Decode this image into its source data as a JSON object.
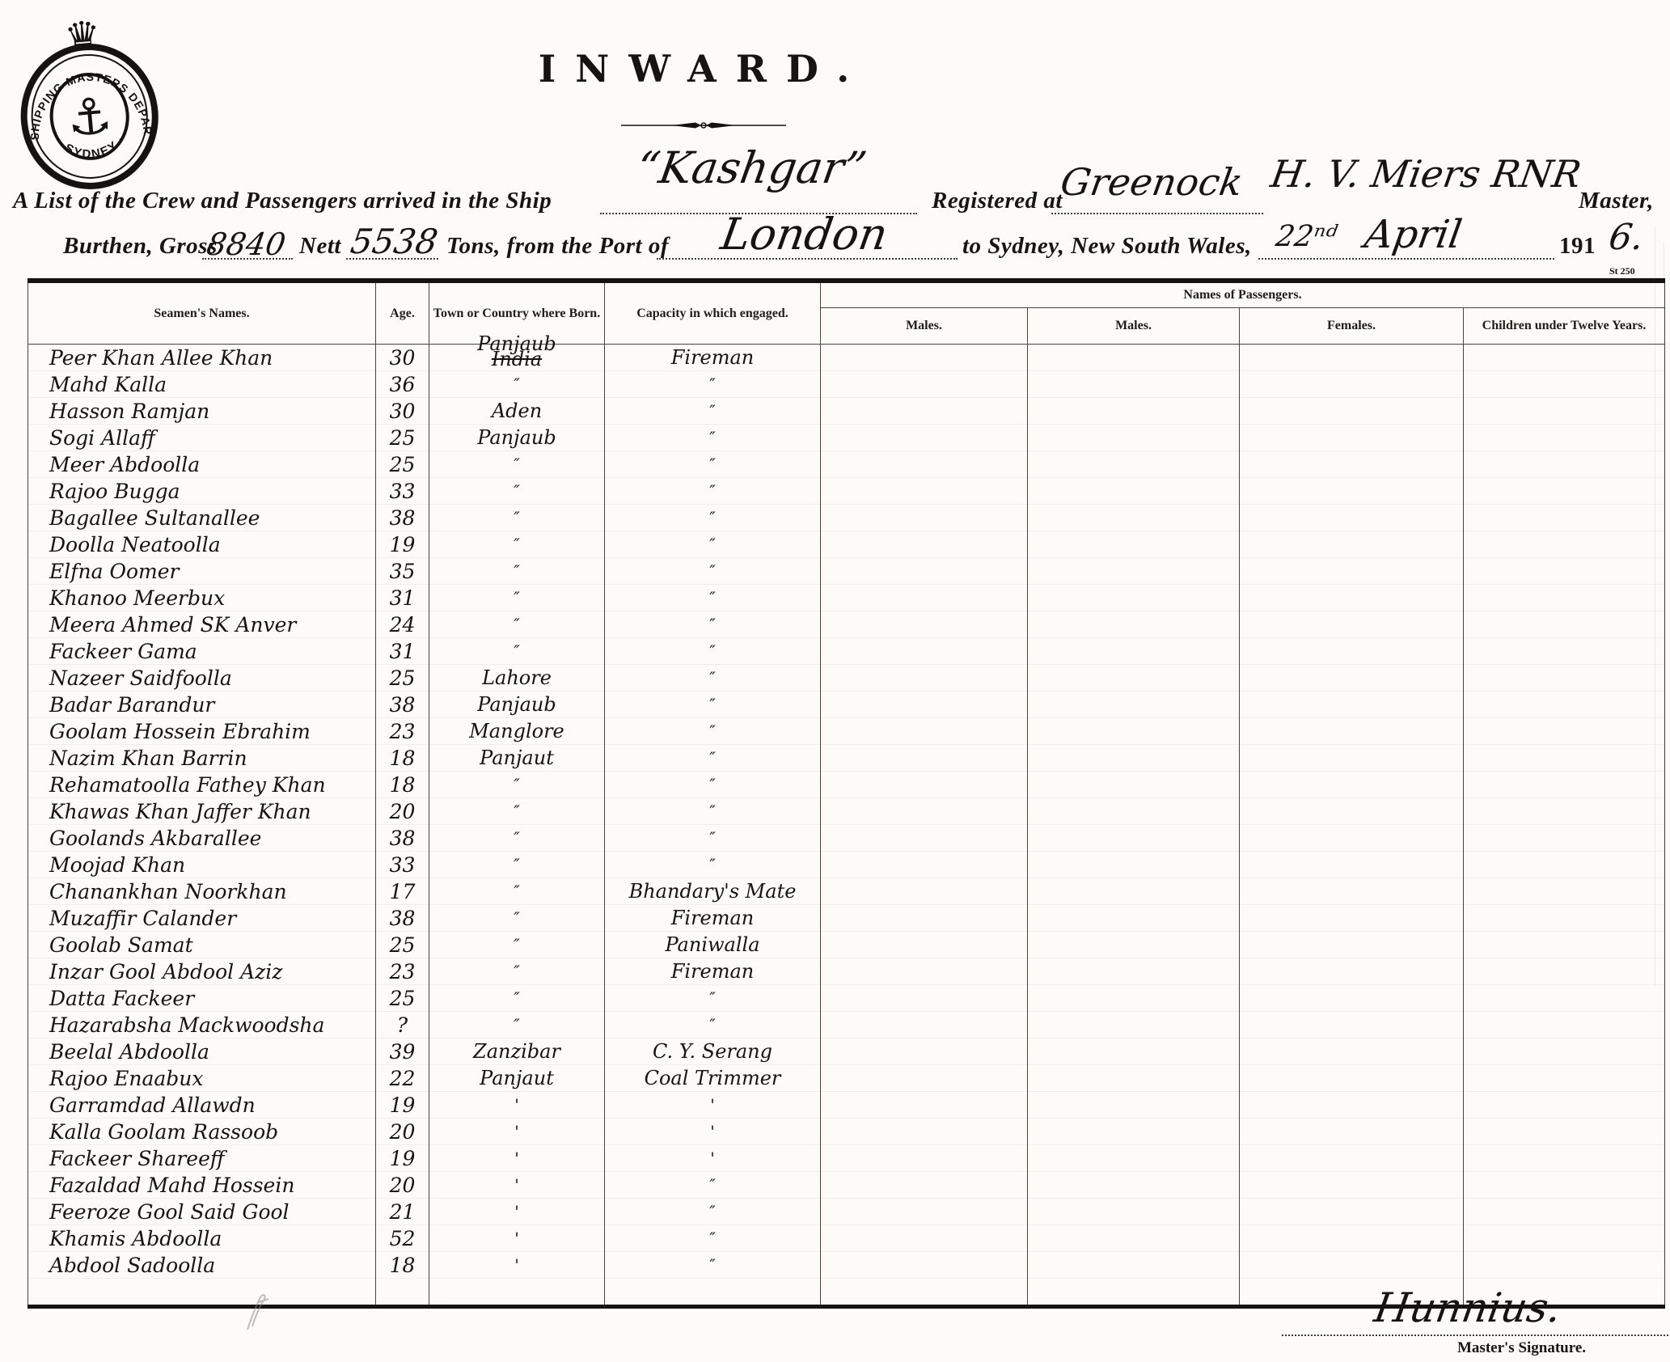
{
  "title": {
    "text": "INWARD."
  },
  "seal": {
    "ring_text_top": "SHIPPING MASTERS DEPARTMENT",
    "ring_text_bottom": "· SYDNEY ·",
    "crown_glyph": "♛",
    "anchor_glyph": "⚓"
  },
  "form": {
    "line1_prefix": "A List of the Crew and Passengers arrived in the Ship",
    "ship_name": "“Kashgar”",
    "registered_at_label": "Registered at",
    "registered_at_value": "Greenock",
    "master_value": "H. V. Miers RNR",
    "master_label": "Master,",
    "burthen_label": "Burthen, Gross",
    "gross_value": "8840",
    "nett_label": "Nett",
    "nett_value": "5538",
    "tons_label": "Tons, from the Port of",
    "port_value": "London",
    "destination_label": "to Sydney, New South Wales,",
    "date_day": "22ⁿᵈ",
    "date_month": "April",
    "year_printed": "191",
    "year_written": "6.",
    "form_number": "St 250"
  },
  "table": {
    "headers": {
      "seamen": "Seamen's Names.",
      "age": "Age.",
      "born": "Town or Country where Born.",
      "capacity": "Capacity in which engaged.",
      "passengers_group": "Names of Passengers.",
      "passenger_cols": [
        "Males.",
        "Males.",
        "Females.",
        "Children under Twelve Years."
      ]
    },
    "rows": [
      {
        "name": "Peer Khan Allee Khan",
        "age": "30",
        "born": "Panjaub",
        "born_struck": "India",
        "capacity": "Fireman"
      },
      {
        "name": "Mahd Kalla",
        "age": "36",
        "born": "″",
        "capacity": "″"
      },
      {
        "name": "Hasson Ramjan",
        "age": "30",
        "born": "Aden",
        "capacity": "″"
      },
      {
        "name": "Sogi Allaff",
        "age": "25",
        "born": "Panjaub",
        "capacity": "″"
      },
      {
        "name": "Meer Abdoolla",
        "age": "25",
        "born": "″",
        "capacity": "″"
      },
      {
        "name": "Rajoo Bugga",
        "age": "33",
        "born": "″",
        "capacity": "″"
      },
      {
        "name": "Bagallee Sultanallee",
        "age": "38",
        "born": "″",
        "capacity": "″"
      },
      {
        "name": "Doolla Neatoolla",
        "age": "19",
        "born": "″",
        "capacity": "″"
      },
      {
        "name": "Elfna Oomer",
        "age": "35",
        "born": "″",
        "capacity": "″"
      },
      {
        "name": "Khanoo Meerbux",
        "age": "31",
        "born": "″",
        "capacity": "″"
      },
      {
        "name": "Meera Ahmed SK Anver",
        "age": "24",
        "born": "″",
        "capacity": "″"
      },
      {
        "name": "Fackeer Gama",
        "age": "31",
        "born": "″",
        "capacity": "″"
      },
      {
        "name": "Nazeer Saidfoolla",
        "age": "25",
        "born": "Lahore",
        "capacity": "″"
      },
      {
        "name": "Badar Barandur",
        "age": "38",
        "born": "Panjaub",
        "capacity": "″"
      },
      {
        "name": "Goolam Hossein Ebrahim",
        "age": "23",
        "born": "Manglore",
        "capacity": "″"
      },
      {
        "name": "Nazim Khan Barrin",
        "age": "18",
        "born": "Panjaut",
        "capacity": "″"
      },
      {
        "name": "Rehamatoolla Fathey Khan",
        "age": "18",
        "born": "″",
        "capacity": "″"
      },
      {
        "name": "Khawas Khan Jaffer Khan",
        "age": "20",
        "born": "″",
        "capacity": "″"
      },
      {
        "name": "Goolands Akbarallee",
        "age": "38",
        "born": "″",
        "capacity": "″"
      },
      {
        "name": "Moojad Khan",
        "age": "33",
        "born": "″",
        "capacity": "″"
      },
      {
        "name": "Chanankhan Noorkhan",
        "age": "17",
        "born": "″",
        "capacity": "Bhandary's Mate"
      },
      {
        "name": "Muzaffir Calander",
        "age": "38",
        "born": "″",
        "capacity": "Fireman"
      },
      {
        "name": "Goolab Samat",
        "age": "25",
        "born": "″",
        "capacity": "Paniwalla"
      },
      {
        "name": "Inzar Gool Abdool Aziz",
        "age": "23",
        "born": "″",
        "capacity": "Fireman"
      },
      {
        "name": "Datta Fackeer",
        "age": "25",
        "born": "″",
        "capacity": "″"
      },
      {
        "name": "Hazarabsha Mackwoodsha",
        "age": "?",
        "born": "″",
        "capacity": "″"
      },
      {
        "name": "Beelal Abdoolla",
        "age": "39",
        "born": "Zanzibar",
        "capacity": "C. Y. Serang"
      },
      {
        "name": "Rajoo Enaabux",
        "age": "22",
        "born": "Panjaut",
        "capacity": "Coal Trimmer"
      },
      {
        "name": "Garramdad Allawdn",
        "age": "19",
        "born": "'",
        "capacity": "'"
      },
      {
        "name": "Kalla Goolam Rassoob",
        "age": "20",
        "born": "'",
        "capacity": "'"
      },
      {
        "name": "Fackeer Shareeff",
        "age": "19",
        "born": "'",
        "capacity": "'"
      },
      {
        "name": "Fazaldad Mahd Hossein",
        "age": "20",
        "born": "'",
        "capacity": "″"
      },
      {
        "name": "Feeroze Gool Said Gool",
        "age": "21",
        "born": "'",
        "capacity": "″"
      },
      {
        "name": "Khamis Abdoolla",
        "age": "52",
        "born": "'",
        "capacity": "″"
      },
      {
        "name": "Abdool Sadoolla",
        "age": "18",
        "born": "'",
        "capacity": "″"
      }
    ]
  },
  "signature": {
    "value": "Hunnius.",
    "label": "Master's Signature."
  }
}
